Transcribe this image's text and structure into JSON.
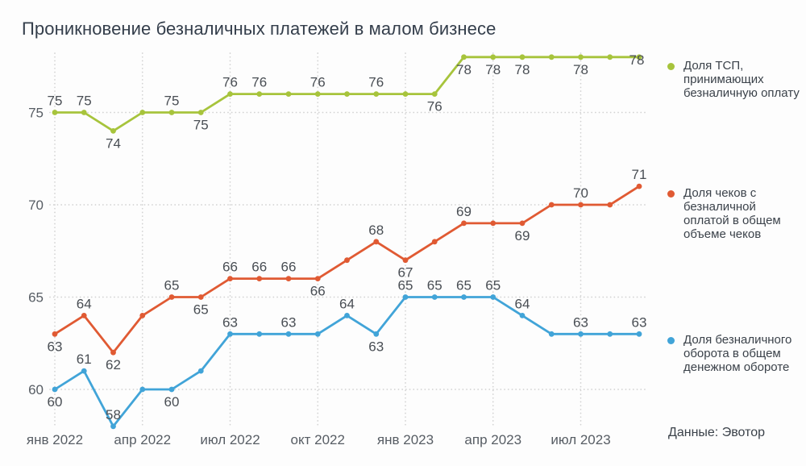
{
  "chart_data": {
    "type": "line",
    "title": "Проникновение безналичных платежей в малом бизнесе",
    "source": "Данные: Эвотор",
    "x_unit": "month",
    "point_count": 21,
    "x_ticks": [
      {
        "label": "янв 2022",
        "month": 0
      },
      {
        "label": "апр 2022",
        "month": 3
      },
      {
        "label": "июл 2022",
        "month": 6
      },
      {
        "label": "окт 2022",
        "month": 9
      },
      {
        "label": "янв 2023",
        "month": 12
      },
      {
        "label": "апр 2023",
        "month": 15
      },
      {
        "label": "июл 2023",
        "month": 18
      }
    ],
    "y_ticks": [
      60,
      65,
      70,
      75
    ],
    "ylim": [
      57,
      79.5
    ],
    "grid": "dotted",
    "legend_position": "right",
    "series": [
      {
        "name": "Доля ТСП, принимающих безналичную оплату",
        "color": "#a7c43c",
        "values": [
          75,
          75,
          74,
          75,
          75,
          75,
          76,
          76,
          76,
          76,
          76,
          76,
          76,
          76,
          78,
          78,
          78,
          78,
          78,
          78,
          78
        ],
        "label_positions": [
          "above",
          "above",
          "below",
          null,
          "above",
          "below",
          "above",
          "above",
          null,
          "above",
          null,
          "above",
          null,
          "below",
          "below",
          "below",
          "below",
          null,
          "below",
          null,
          "end"
        ]
      },
      {
        "name": "Доля чеков с безналичной оплатой в общем объеме чеков",
        "color": "#e05a33",
        "values": [
          63,
          64,
          62,
          64,
          65,
          65,
          66,
          66,
          66,
          66,
          67,
          68,
          67,
          68,
          69,
          69,
          69,
          70,
          70,
          70,
          71
        ],
        "label_positions": [
          "below",
          "above",
          "below",
          null,
          "above",
          "below",
          "above",
          "above",
          "above",
          "below",
          null,
          "above",
          "below",
          null,
          "above",
          null,
          "below",
          null,
          "above",
          null,
          "above"
        ]
      },
      {
        "name": "Доля безналичного оборота в общем денежном обороте",
        "color": "#41a4d8",
        "values": [
          60,
          61,
          58,
          60,
          60,
          61,
          63,
          63,
          63,
          63,
          64,
          63,
          65,
          65,
          65,
          65,
          64,
          63,
          63,
          63,
          63
        ],
        "label_positions": [
          "below",
          "above",
          "above",
          null,
          "below",
          null,
          "above",
          null,
          "above",
          null,
          "above",
          "below",
          "above",
          "above",
          "above",
          "above",
          "above",
          null,
          "above",
          null,
          "above"
        ]
      }
    ]
  },
  "legend": {
    "items": [
      {
        "lines": [
          "Доля ТСП,",
          "принимающих",
          "безналичную оплату"
        ]
      },
      {
        "lines": [
          "Доля чеков с",
          "безналичной",
          "оплатой в общем",
          "объеме чеков"
        ]
      },
      {
        "lines": [
          "Доля безналичного",
          "оборота в общем",
          "денежном обороте"
        ]
      }
    ]
  }
}
